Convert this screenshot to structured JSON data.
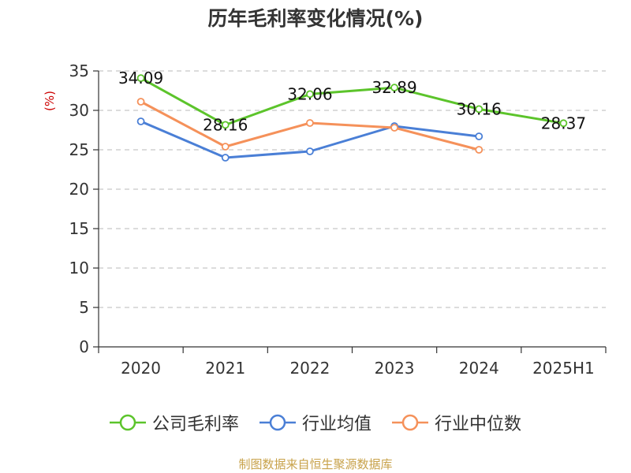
{
  "chart_data": {
    "type": "line",
    "title": "历年毛利率变化情况(%)",
    "ylabel": "(%)",
    "xlabel": "",
    "categories": [
      "2020",
      "2021",
      "2022",
      "2023",
      "2024",
      "2025H1"
    ],
    "ylim": [
      0,
      35
    ],
    "yticks": [
      0,
      5,
      10,
      15,
      20,
      25,
      30,
      35
    ],
    "grid": "horizontal dashed",
    "legend_position": "bottom",
    "series": [
      {
        "name": "公司毛利率",
        "color": "#5cc42b",
        "values": [
          34.09,
          28.16,
          32.06,
          32.89,
          30.16,
          28.37
        ],
        "labels": [
          "34.09",
          "28.16",
          "32.06",
          "32.89",
          "30.16",
          "28.37"
        ]
      },
      {
        "name": "行业均值",
        "color": "#4a7fd6",
        "values": [
          28.6,
          24.0,
          24.8,
          28.0,
          26.7,
          null
        ]
      },
      {
        "name": "行业中位数",
        "color": "#f5915a",
        "values": [
          31.1,
          25.4,
          28.4,
          27.8,
          25.0,
          null
        ]
      }
    ]
  },
  "source": "制图数据来自恒生聚源数据库"
}
